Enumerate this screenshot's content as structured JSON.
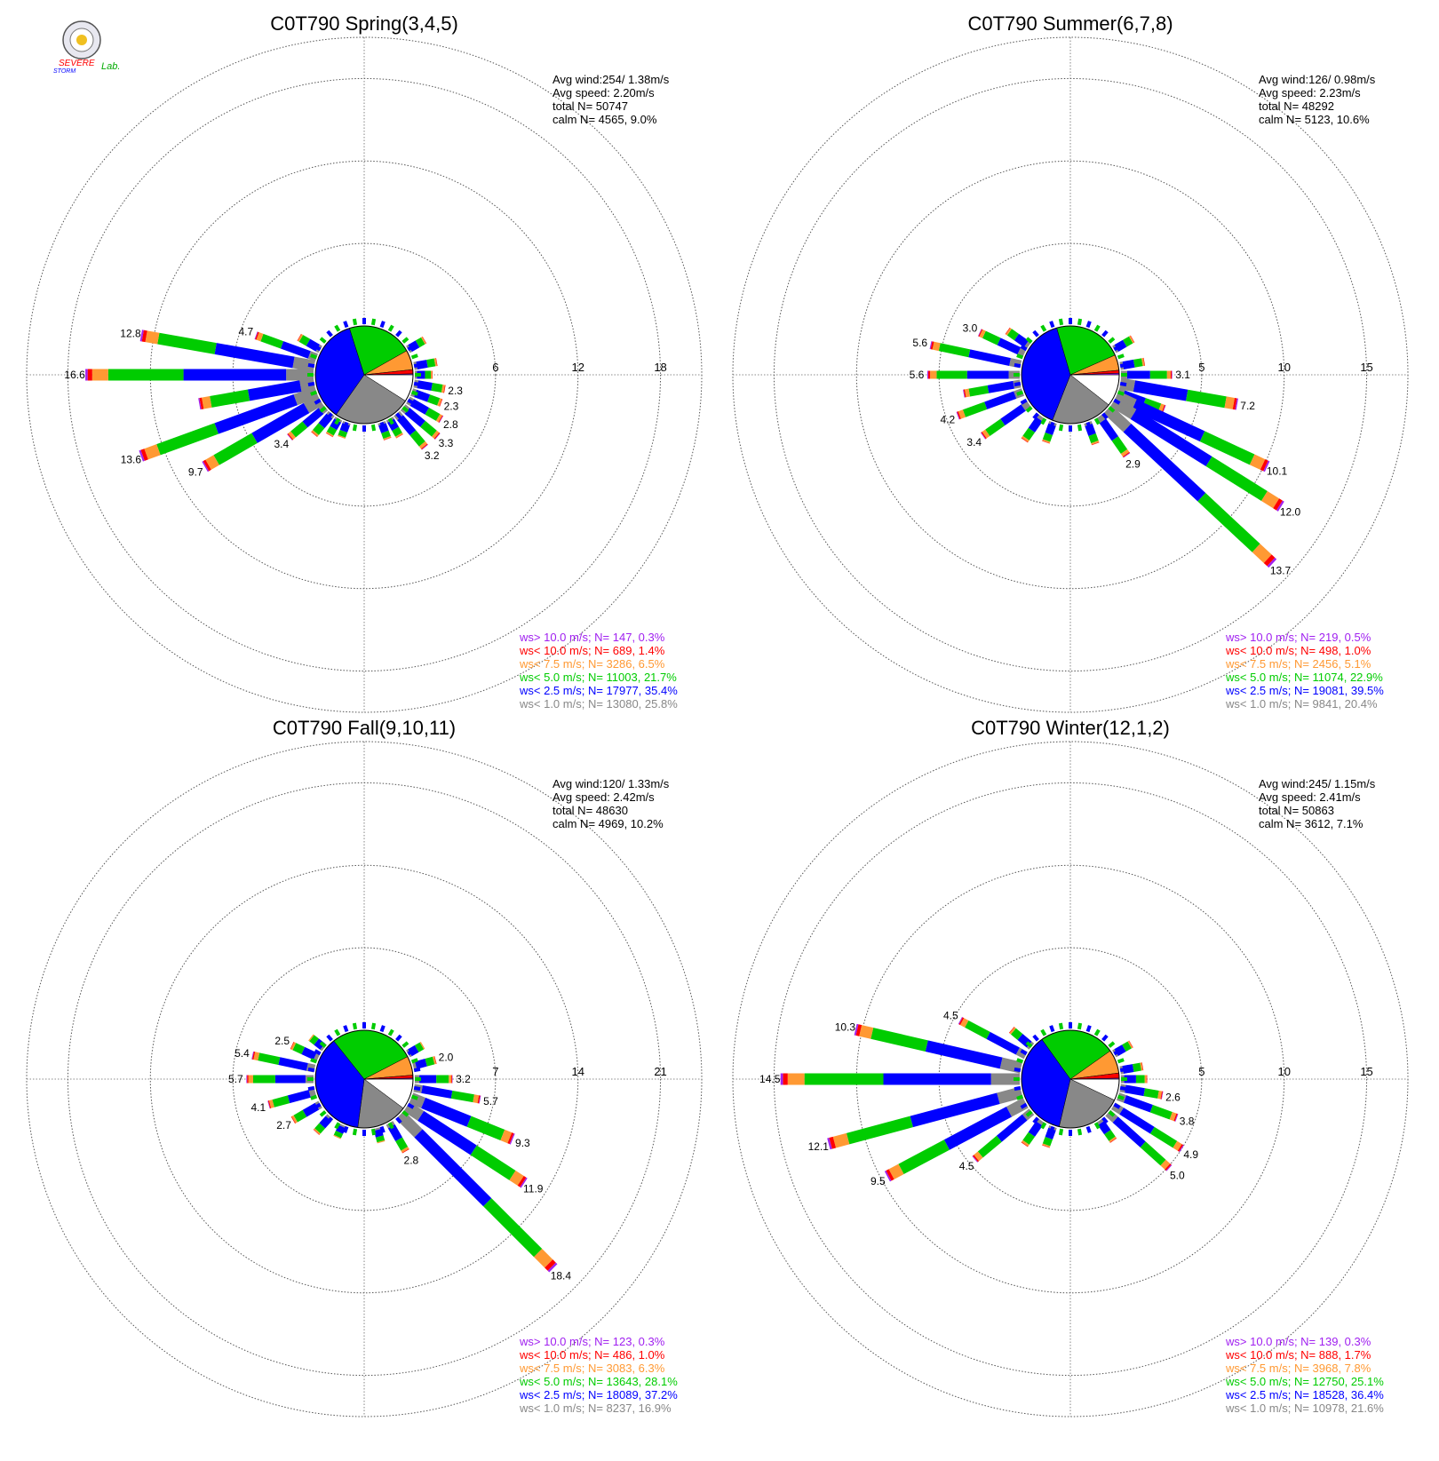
{
  "logo": {
    "text_top": "SEVERE",
    "text_bottom": "STORM",
    "text_lab": "Lab."
  },
  "colors": {
    "c_gt10": "#a020f0",
    "c_lt10": "#ff0000",
    "c_lt7_5": "#ff9933",
    "c_lt5": "#00cc00",
    "c_lt2_5": "#0000ff",
    "c_lt1": "#888888",
    "calm": "#ffffff"
  },
  "chart_data": [
    {
      "type": "windrose",
      "title": "C0T790 Spring(3,4,5)",
      "ring_labels": [
        "6",
        "12",
        "18"
      ],
      "rmax": 21,
      "stats": {
        "avg_wind": "Avg wind:254/ 1.38m/s",
        "avg_speed": "Avg speed: 2.20m/s",
        "total": "total N=      50747",
        "calm": "calm N=   4565,   9.0%"
      },
      "legend": [
        "ws> 10.0 m/s; N=    147,   0.3%",
        "ws< 10.0 m/s; N=    689,   1.4%",
        "ws<  7.5 m/s; N=   3286,   6.5%",
        "ws<  5.0 m/s; N= 11003, 21.7%",
        "ws<  2.5 m/s; N= 17977, 35.4%",
        "ws<  1.0 m/s; N= 13080, 25.8%"
      ],
      "pie": [
        9.0,
        25.8,
        35.4,
        21.7,
        6.5,
        1.4,
        0.3
      ],
      "bars": [
        {
          "dir": 90,
          "total": 1.3
        },
        {
          "dir": 100,
          "total": 2.3,
          "label": "2.3"
        },
        {
          "dir": 110,
          "total": 2.3,
          "label": "2.3"
        },
        {
          "dir": 120,
          "total": 2.8,
          "label": "2.8"
        },
        {
          "dir": 130,
          "total": 3.3,
          "label": "3.3"
        },
        {
          "dir": 140,
          "total": 3.2,
          "label": "3.2"
        },
        {
          "dir": 150,
          "total": 1.5
        },
        {
          "dir": 160,
          "total": 1.3
        },
        {
          "dir": 200,
          "total": 1.2
        },
        {
          "dir": 210,
          "total": 1.4
        },
        {
          "dir": 220,
          "total": 2.0
        },
        {
          "dir": 230,
          "total": 3.4,
          "label": "3.4"
        },
        {
          "dir": 240,
          "total": 9.7,
          "label": "9.7"
        },
        {
          "dir": 250,
          "total": 13.6,
          "label": "13.6"
        },
        {
          "dir": 260,
          "total": 8.5
        },
        {
          "dir": 270,
          "total": 16.6,
          "label": "16.6"
        },
        {
          "dir": 280,
          "total": 12.8,
          "label": "12.8"
        },
        {
          "dir": 290,
          "total": 4.7,
          "label": "4.7"
        },
        {
          "dir": 300,
          "total": 1.8
        },
        {
          "dir": 60,
          "total": 1.4
        },
        {
          "dir": 80,
          "total": 1.7
        }
      ]
    },
    {
      "type": "windrose",
      "title": "C0T790 Summer(6,7,8)",
      "ring_labels": [
        "5",
        "10",
        "15"
      ],
      "rmax": 17.5,
      "stats": {
        "avg_wind": "Avg wind:126/ 0.98m/s",
        "avg_speed": "Avg speed: 2.23m/s",
        "total": "total N=      48292",
        "calm": "calm N=   5123,  10.6%"
      },
      "legend": [
        "ws> 10.0 m/s; N=    219,   0.5%",
        "ws< 10.0 m/s; N=    498,   1.0%",
        "ws<  7.5 m/s; N=   2456,   5.1%",
        "ws<  5.0 m/s; N= 11074, 22.9%",
        "ws<  2.5 m/s; N= 19081, 39.5%",
        "ws<  1.0 m/s; N=   9841, 20.4%"
      ],
      "pie": [
        10.6,
        20.4,
        39.5,
        22.9,
        5.1,
        1.0,
        0.5
      ],
      "bars": [
        {
          "dir": 60,
          "total": 1.3
        },
        {
          "dir": 80,
          "total": 1.5
        },
        {
          "dir": 90,
          "total": 3.1,
          "label": "3.1"
        },
        {
          "dir": 100,
          "total": 7.2,
          "label": "7.2"
        },
        {
          "dir": 110,
          "total": 3.0
        },
        {
          "dir": 115,
          "total": 10.1,
          "label": "10.1"
        },
        {
          "dir": 122,
          "total": 12.0,
          "label": "12.0"
        },
        {
          "dir": 133,
          "total": 13.7,
          "label": "13.7"
        },
        {
          "dir": 145,
          "total": 2.9,
          "label": "2.9"
        },
        {
          "dir": 160,
          "total": 1.4
        },
        {
          "dir": 200,
          "total": 1.3
        },
        {
          "dir": 215,
          "total": 1.8
        },
        {
          "dir": 235,
          "total": 3.4,
          "label": "3.4"
        },
        {
          "dir": 250,
          "total": 4.2,
          "label": "4.2"
        },
        {
          "dir": 260,
          "total": 3.5
        },
        {
          "dir": 270,
          "total": 5.6,
          "label": "5.6"
        },
        {
          "dir": 282,
          "total": 5.6,
          "label": "5.6"
        },
        {
          "dir": 295,
          "total": 3.0,
          "label": "3.0"
        },
        {
          "dir": 305,
          "total": 1.6
        }
      ]
    },
    {
      "type": "windrose",
      "title": "C0T790 Fall(9,10,11)",
      "ring_labels": [
        "7",
        "14",
        "21"
      ],
      "rmax": 24.5,
      "stats": {
        "avg_wind": "Avg wind:120/ 1.33m/s",
        "avg_speed": "Avg speed: 2.42m/s",
        "total": "total N=      48630",
        "calm": "calm N=   4969,  10.2%"
      },
      "legend": [
        "ws> 10.0 m/s; N=    123,   0.3%",
        "ws< 10.0 m/s; N=    486,   1.0%",
        "ws<  7.5 m/s; N=   3083,   6.3%",
        "ws<  5.0 m/s; N= 13643, 28.1%",
        "ws<  2.5 m/s; N= 18089, 37.2%",
        "ws<  1.0 m/s; N=   8237, 16.9%"
      ],
      "pie": [
        10.2,
        16.9,
        37.2,
        28.1,
        6.3,
        1.0,
        0.3
      ],
      "bars": [
        {
          "dir": 60,
          "total": 1.5
        },
        {
          "dir": 75,
          "total": 2.0,
          "label": "2.0"
        },
        {
          "dir": 90,
          "total": 3.2,
          "label": "3.2"
        },
        {
          "dir": 100,
          "total": 5.7,
          "label": "5.7"
        },
        {
          "dir": 112,
          "total": 9.3,
          "label": "9.3"
        },
        {
          "dir": 123,
          "total": 11.9,
          "label": "11.9"
        },
        {
          "dir": 135,
          "total": 18.4,
          "label": "18.4"
        },
        {
          "dir": 150,
          "total": 2.8,
          "label": "2.8"
        },
        {
          "dir": 165,
          "total": 1.3
        },
        {
          "dir": 205,
          "total": 1.2
        },
        {
          "dir": 222,
          "total": 1.8
        },
        {
          "dir": 240,
          "total": 2.7,
          "label": "2.7"
        },
        {
          "dir": 255,
          "total": 4.1,
          "label": "4.1"
        },
        {
          "dir": 270,
          "total": 5.7,
          "label": "5.7"
        },
        {
          "dir": 282,
          "total": 5.4,
          "label": "5.4"
        },
        {
          "dir": 295,
          "total": 2.5,
          "label": "2.5"
        },
        {
          "dir": 308,
          "total": 1.5
        }
      ]
    },
    {
      "type": "windrose",
      "title": "C0T790 Winter(12,1,2)",
      "ring_labels": [
        "5",
        "10",
        "15"
      ],
      "rmax": 17.5,
      "stats": {
        "avg_wind": "Avg wind:245/ 1.15m/s",
        "avg_speed": "Avg speed: 2.41m/s",
        "total": "total N=      50863",
        "calm": "calm N=   3612,   7.1%"
      },
      "legend": [
        "ws> 10.0 m/s; N=    139,   0.3%",
        "ws< 10.0 m/s; N=    888,   1.7%",
        "ws<  7.5 m/s; N=   3968,   7.8%",
        "ws<  5.0 m/s; N= 12750, 25.1%",
        "ws<  2.5 m/s; N= 18528, 36.4%",
        "ws<  1.0 m/s; N= 10978, 21.6%"
      ],
      "pie": [
        7.1,
        21.6,
        36.4,
        25.1,
        7.8,
        1.7,
        0.3
      ],
      "bars": [
        {
          "dir": 60,
          "total": 1.2
        },
        {
          "dir": 80,
          "total": 1.4
        },
        {
          "dir": 90,
          "total": 1.6
        },
        {
          "dir": 100,
          "total": 2.6,
          "label": "2.6"
        },
        {
          "dir": 110,
          "total": 3.8,
          "label": "3.8"
        },
        {
          "dir": 122,
          "total": 4.9,
          "label": "4.9"
        },
        {
          "dir": 132,
          "total": 5.0,
          "label": "5.0"
        },
        {
          "dir": 145,
          "total": 1.5
        },
        {
          "dir": 200,
          "total": 1.3
        },
        {
          "dir": 215,
          "total": 1.8
        },
        {
          "dir": 230,
          "total": 4.5,
          "label": "4.5"
        },
        {
          "dir": 242,
          "total": 9.5,
          "label": "9.5"
        },
        {
          "dir": 255,
          "total": 12.1,
          "label": "12.1"
        },
        {
          "dir": 270,
          "total": 14.5,
          "label": "14.5"
        },
        {
          "dir": 283,
          "total": 10.3,
          "label": "10.3"
        },
        {
          "dir": 298,
          "total": 4.5,
          "label": "4.5"
        },
        {
          "dir": 310,
          "total": 1.6
        }
      ]
    }
  ]
}
